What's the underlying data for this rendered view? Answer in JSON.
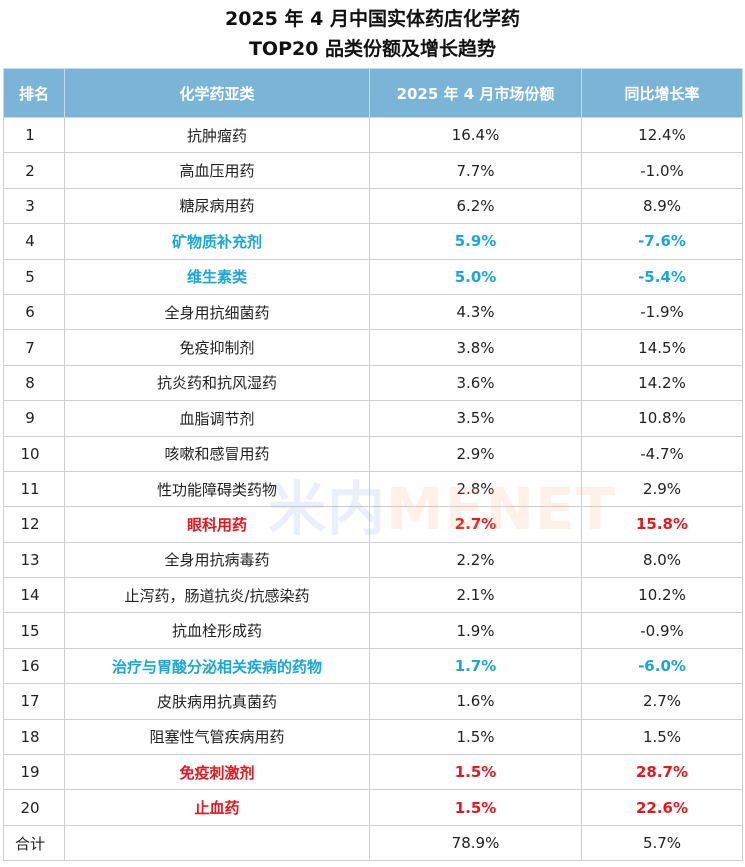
{
  "title": {
    "line1": "2025 年 4 月中国实体药店化学药",
    "line2": "TOP20 品类份额及增长趋势"
  },
  "table": {
    "headers": [
      "排名",
      "化学药亚类",
      "2025 年 4 月市场份额",
      "同比增长率"
    ],
    "rows": [
      {
        "rank": "1",
        "category": "抗肿瘤药",
        "share": "16.4%",
        "growth": "12.4%",
        "highlight": ""
      },
      {
        "rank": "2",
        "category": "高血压用药",
        "share": "7.7%",
        "growth": "-1.0%",
        "highlight": ""
      },
      {
        "rank": "3",
        "category": "糖尿病用药",
        "share": "6.2%",
        "growth": "8.9%",
        "highlight": ""
      },
      {
        "rank": "4",
        "category": "矿物质补充剂",
        "share": "5.9%",
        "growth": "-7.6%",
        "highlight": "blue"
      },
      {
        "rank": "5",
        "category": "维生素类",
        "share": "5.0%",
        "growth": "-5.4%",
        "highlight": "blue"
      },
      {
        "rank": "6",
        "category": "全身用抗细菌药",
        "share": "4.3%",
        "growth": "-1.9%",
        "highlight": ""
      },
      {
        "rank": "7",
        "category": "免疫抑制剂",
        "share": "3.8%",
        "growth": "14.5%",
        "highlight": ""
      },
      {
        "rank": "8",
        "category": "抗炎药和抗风湿药",
        "share": "3.6%",
        "growth": "14.2%",
        "highlight": ""
      },
      {
        "rank": "9",
        "category": "血脂调节剂",
        "share": "3.5%",
        "growth": "10.8%",
        "highlight": ""
      },
      {
        "rank": "10",
        "category": "咳嗽和感冒用药",
        "share": "2.9%",
        "growth": "-4.7%",
        "highlight": ""
      },
      {
        "rank": "11",
        "category": "性功能障碍类药物",
        "share": "2.8%",
        "growth": "2.9%",
        "highlight": ""
      },
      {
        "rank": "12",
        "category": "眼科用药",
        "share": "2.7%",
        "growth": "15.8%",
        "highlight": "red"
      },
      {
        "rank": "13",
        "category": "全身用抗病毒药",
        "share": "2.2%",
        "growth": "8.0%",
        "highlight": ""
      },
      {
        "rank": "14",
        "category": "止泻药，肠道抗炎/抗感染药",
        "share": "2.1%",
        "growth": "10.2%",
        "highlight": ""
      },
      {
        "rank": "15",
        "category": "抗血栓形成药",
        "share": "1.9%",
        "growth": "-0.9%",
        "highlight": ""
      },
      {
        "rank": "16",
        "category": "治疗与胃酸分泌相关疾病的药物",
        "share": "1.7%",
        "growth": "-6.0%",
        "highlight": "blue"
      },
      {
        "rank": "17",
        "category": "皮肤病用抗真菌药",
        "share": "1.6%",
        "growth": "2.7%",
        "highlight": ""
      },
      {
        "rank": "18",
        "category": "阻塞性气管疾病用药",
        "share": "1.5%",
        "growth": "1.5%",
        "highlight": ""
      },
      {
        "rank": "19",
        "category": "免疫刺激剂",
        "share": "1.5%",
        "growth": "28.7%",
        "highlight": "red"
      },
      {
        "rank": "20",
        "category": "止血药",
        "share": "1.5%",
        "growth": "22.6%",
        "highlight": "red"
      }
    ],
    "total": {
      "rank": "合计",
      "category": "",
      "share": "78.9%",
      "growth": "5.7%"
    }
  },
  "watermark": {
    "part1": "米内",
    "part2": "MENET"
  },
  "colors": {
    "header_bg": "#7ab4d6",
    "highlight_blue": "#19a7d9",
    "highlight_red": "#e8161f"
  }
}
